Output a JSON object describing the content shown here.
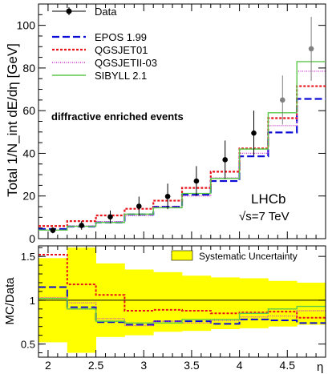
{
  "chart_data": [
    {
      "type": "line",
      "panel": "top",
      "ylabel": "Total 1/N_int dE/dη [GeV]",
      "ylim": [
        0,
        110
      ],
      "xlim": [
        1.9,
        4.9
      ],
      "yticks": [
        0,
        20,
        40,
        60,
        80,
        100
      ],
      "log_scale": false,
      "grid": false,
      "legend_position": "top-left",
      "bin_edges": [
        1.9,
        2.2,
        2.5,
        2.8,
        3.1,
        3.4,
        3.7,
        4.0,
        4.3,
        4.6,
        4.9
      ],
      "legend": [
        {
          "key": "data",
          "label": "Data"
        },
        {
          "key": "epos",
          "label": "EPOS 1.99"
        },
        {
          "key": "qgsjet01",
          "label": "QGSJET01"
        },
        {
          "key": "qgsjetii",
          "label": "QGSJETII-03"
        },
        {
          "key": "sibyll",
          "label": "SIBYLL 2.1"
        }
      ],
      "annotations": {
        "selection": "diffractive enriched events",
        "experiment": "LHCb",
        "energy": "√s=7 TeV"
      },
      "data_points": {
        "name": "Data",
        "x": [
          2.05,
          2.35,
          2.65,
          2.95,
          3.25,
          3.55,
          3.85,
          4.15,
          4.45,
          4.75
        ],
        "y": [
          3.9,
          6.2,
          10.2,
          15.2,
          19.8,
          27.0,
          37.0,
          49.5,
          65.0,
          89.0
        ],
        "err": [
          1.4,
          2.0,
          3.0,
          4.5,
          6.0,
          7.0,
          9.0,
          10.5,
          11.5,
          15.0
        ],
        "colors": [
          "#000000",
          "#000000",
          "#000000",
          "#000000",
          "#000000",
          "#000000",
          "#000000",
          "#000000",
          "#808080",
          "#808080"
        ]
      },
      "series": [
        {
          "key": "epos",
          "name": "EPOS 1.99",
          "color": "#0b0bd6",
          "dash": "9,4",
          "values": [
            4.5,
            5.7,
            7.6,
            11.4,
            15.0,
            20.6,
            27.0,
            38.6,
            49.8,
            65.5
          ]
        },
        {
          "key": "qgsjet01",
          "name": "QGSJET01",
          "color": "#e8141c",
          "dash": "3,2",
          "values": [
            5.9,
            8.2,
            10.9,
            14.0,
            17.8,
            23.8,
            31.4,
            42.3,
            56.5,
            71.5
          ]
        },
        {
          "key": "qgsjetii",
          "name": "QGSJETII-03",
          "color": "#cc33cc",
          "dash": "1,1.5",
          "values": [
            4.0,
            6.0,
            8.0,
            10.8,
            15.0,
            20.0,
            28.5,
            40.0,
            53.0,
            78.5
          ]
        },
        {
          "key": "sibyll",
          "name": "SIBYLL 2.1",
          "color": "#5cc84a",
          "dash": "",
          "values": [
            4.0,
            5.8,
            7.6,
            11.5,
            14.5,
            21.2,
            28.2,
            42.0,
            59.0,
            83.0
          ]
        }
      ]
    },
    {
      "type": "line",
      "panel": "bottom",
      "ylabel": "MC/Data",
      "xlabel": "η",
      "ylim": [
        0.35,
        1.62
      ],
      "xlim": [
        1.9,
        4.9
      ],
      "yticks": [
        0.5,
        1,
        1.5
      ],
      "ytick_labels": [
        "0.5",
        "1",
        "1.5"
      ],
      "xticks": [
        2,
        2.5,
        3,
        3.5,
        4,
        4.5
      ],
      "xtick_labels": [
        "2",
        "2.5",
        "3",
        "3.5",
        "4",
        "4.5"
      ],
      "reference_line": 1,
      "legend_position": "top-right",
      "legend": [
        {
          "key": "systematic",
          "label": "Systematic Uncertainty"
        }
      ],
      "band": {
        "name": "Systematic Uncertainty",
        "color": "#ffff00",
        "low": [
          0.52,
          0.4,
          0.58,
          0.6,
          0.64,
          0.65,
          0.67,
          0.68,
          0.7,
          0.72
        ],
        "high": [
          1.48,
          1.6,
          1.42,
          1.35,
          1.32,
          1.28,
          1.26,
          1.25,
          1.22,
          1.2
        ]
      },
      "series": [
        {
          "key": "epos",
          "name": "EPOS 1.99",
          "color": "#0b0bd6",
          "dash": "9,4",
          "values": [
            1.15,
            0.92,
            0.75,
            0.72,
            0.76,
            0.76,
            0.73,
            0.78,
            0.77,
            0.74
          ]
        },
        {
          "key": "qgsjet01",
          "name": "QGSJET01",
          "color": "#e8141c",
          "dash": "3,2",
          "values": [
            1.52,
            1.18,
            1.06,
            0.88,
            0.89,
            0.88,
            0.85,
            0.86,
            0.87,
            0.8
          ]
        },
        {
          "key": "qgsjetii",
          "name": "QGSJETII-03",
          "color": "#cc33cc",
          "dash": "1,1.5",
          "values": [
            1.03,
            0.97,
            0.79,
            0.71,
            0.76,
            0.74,
            0.77,
            0.81,
            0.82,
            0.88
          ]
        },
        {
          "key": "sibyll",
          "name": "SIBYLL 2.1",
          "color": "#5cc84a",
          "dash": "",
          "values": [
            1.02,
            0.9,
            0.76,
            0.74,
            0.74,
            0.78,
            0.78,
            0.85,
            0.9,
            0.93
          ]
        }
      ]
    }
  ]
}
